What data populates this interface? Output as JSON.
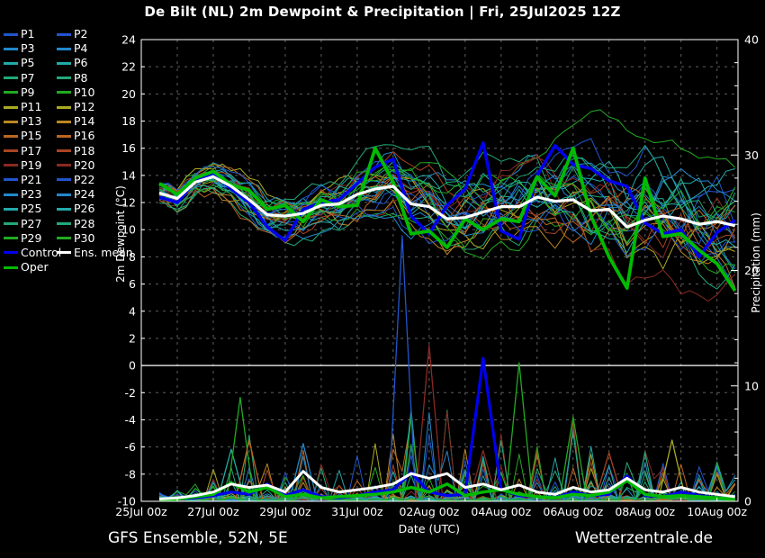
{
  "title": "De Bilt  (NL)  2m Dewpoint & Precipitation | Fri, 25Jul2025 12Z",
  "footer": {
    "left": "GFS Ensemble, 52N, 5E",
    "right": "Wetterzentrale.de"
  },
  "legend": {
    "special": [
      {
        "label": "Control",
        "color": "#0000ee"
      },
      {
        "label": "Ens. mean",
        "color": "#ffffff"
      },
      {
        "label": "Oper",
        "color": "#00bb00"
      }
    ]
  },
  "chart_data": {
    "type": "line",
    "title": "De Bilt  (NL)  2m Dewpoint & Precipitation | Fri, 25Jul2025 12Z",
    "x_axis": {
      "label": "Date (UTC)",
      "tick_hours": [
        0,
        48,
        96,
        144,
        192,
        240,
        288,
        336,
        384
      ],
      "tick_labels": [
        "25Jul 00z",
        "27Jul 00z",
        "29Jul 00z",
        "31Jul 00z",
        "02Aug 00z",
        "04Aug 00z",
        "06Aug 00z",
        "08Aug 00z",
        "10Aug 00z"
      ],
      "day_grid_step": 24,
      "hours_domain": [
        0,
        398
      ]
    },
    "y_left": {
      "label": "2m Dewpoint (°C)",
      "min": -10,
      "max": 24,
      "tick_step": 2,
      "zero_line": 0
    },
    "y_right": {
      "label": "Precipitation (mm)",
      "min": 0,
      "max": 40,
      "label_step": 10,
      "tick_step": 2
    },
    "hours": [
      12,
      24,
      36,
      48,
      60,
      72,
      84,
      96,
      108,
      120,
      132,
      144,
      156,
      168,
      180,
      192,
      204,
      216,
      228,
      240,
      252,
      264,
      276,
      288,
      300,
      312,
      324,
      336,
      348,
      360,
      372,
      384,
      396
    ],
    "series": {
      "control": {
        "label": "Control",
        "color": "#0000ee",
        "dewpoint": [
          12.4,
          12.0,
          13.6,
          14.2,
          13.0,
          12.0,
          10.2,
          9.2,
          11.5,
          12.0,
          12.2,
          13.4,
          14.6,
          15.2,
          11.0,
          9.7,
          11.8,
          13.0,
          16.4,
          9.9,
          9.3,
          14.0,
          16.2,
          14.8,
          14.5,
          13.6,
          13.2,
          10.5,
          9.7,
          10.0,
          8.0,
          9.8,
          10.7
        ],
        "precip": [
          0.1,
          0.2,
          0.3,
          0.5,
          0.8,
          0.6,
          1.5,
          0.5,
          1.0,
          0.4,
          0.3,
          0.5,
          0.8,
          1.0,
          2.5,
          0.8,
          0.5,
          0.6,
          12.4,
          1.0,
          0.5,
          0.4,
          0.3,
          0.8,
          0.5,
          0.6,
          2.2,
          0.5,
          0.4,
          0.8,
          0.5,
          0.3,
          0.2
        ]
      },
      "ens_mean": {
        "label": "Ens. mean",
        "color": "#ffffff",
        "dewpoint": [
          12.7,
          12.3,
          13.5,
          13.9,
          13.2,
          12.2,
          11.1,
          11.0,
          11.2,
          11.8,
          11.9,
          12.6,
          13.0,
          13.2,
          11.9,
          11.7,
          10.8,
          10.9,
          11.3,
          11.7,
          11.7,
          12.4,
          12.1,
          12.2,
          11.4,
          11.5,
          10.2,
          10.7,
          11.0,
          10.8,
          10.4,
          10.6,
          10.3
        ],
        "precip": [
          0.2,
          0.3,
          0.5,
          0.8,
          1.5,
          1.2,
          1.4,
          0.8,
          2.6,
          1.2,
          0.8,
          1.0,
          1.2,
          1.5,
          2.4,
          2.0,
          2.4,
          1.2,
          1.5,
          1.0,
          1.4,
          0.8,
          0.6,
          1.2,
          0.8,
          1.0,
          2.0,
          1.0,
          0.8,
          1.2,
          0.8,
          0.6,
          0.4
        ]
      },
      "oper": {
        "label": "Oper",
        "color": "#00bb00",
        "dewpoint": [
          13.4,
          12.6,
          13.8,
          14.3,
          13.3,
          12.9,
          11.5,
          11.8,
          10.6,
          12.2,
          11.7,
          11.8,
          16.0,
          13.5,
          9.7,
          9.9,
          8.7,
          10.8,
          10.0,
          10.8,
          10.6,
          13.9,
          12.5,
          16.0,
          11.0,
          8.0,
          5.7,
          13.8,
          9.5,
          9.7,
          8.5,
          7.5,
          5.5
        ],
        "precip": [
          0.1,
          0.2,
          0.4,
          0.6,
          1.6,
          0.8,
          1.2,
          0.4,
          0.6,
          0.3,
          0.4,
          0.5,
          0.6,
          0.8,
          1.2,
          0.8,
          1.5,
          0.5,
          0.8,
          1.0,
          0.6,
          0.4,
          0.3,
          0.6,
          0.5,
          0.8,
          1.8,
          0.6,
          0.4,
          0.5,
          0.4,
          0.3,
          0.2
        ]
      }
    },
    "members": {
      "labels": [
        "P1",
        "P2",
        "P3",
        "P4",
        "P5",
        "P6",
        "P7",
        "P8",
        "P9",
        "P10",
        "P11",
        "P12",
        "P13",
        "P14",
        "P15",
        "P16",
        "P17",
        "P18",
        "P19",
        "P20",
        "P21",
        "P22",
        "P23",
        "P24",
        "P25",
        "P26",
        "P27",
        "P28",
        "P29",
        "P30"
      ],
      "palette": [
        "#2255cc",
        "#2288cc",
        "#22aaaa",
        "#22aa77",
        "#22aa22",
        "#aaaa22",
        "#bb8822",
        "#bb6622",
        "#aa4422",
        "#8b2a22"
      ],
      "seed": 11,
      "dew_env_min": [
        11.6,
        11.2,
        12.2,
        12.6,
        11.6,
        10.6,
        9.6,
        8.4,
        9.0,
        9.6,
        9.6,
        10.0,
        10.2,
        10.0,
        9.2,
        8.6,
        8.0,
        8.0,
        7.6,
        7.2,
        6.6,
        7.0,
        7.4,
        7.2,
        6.6,
        6.2,
        5.6,
        6.0,
        5.6,
        5.2,
        5.0,
        4.8,
        4.8
      ],
      "dew_env_max": [
        13.6,
        13.2,
        14.8,
        15.8,
        15.4,
        14.6,
        13.4,
        13.0,
        13.6,
        14.0,
        14.4,
        15.6,
        16.6,
        16.4,
        16.6,
        16.8,
        16.2,
        15.2,
        16.0,
        15.4,
        15.0,
        15.6,
        17.0,
        18.0,
        19.0,
        18.6,
        17.6,
        17.0,
        16.6,
        16.0,
        15.6,
        15.4,
        15.0
      ],
      "precip_env_max": [
        0.5,
        0.6,
        1.2,
        2.5,
        7.0,
        5.5,
        4.0,
        2.5,
        5.0,
        4.0,
        3.0,
        4.0,
        5.0,
        6.0,
        8.0,
        9.0,
        8.0,
        5.0,
        6.0,
        6.0,
        7.0,
        5.0,
        4.0,
        7.5,
        5.0,
        4.0,
        3.5,
        4.5,
        3.0,
        5.5,
        3.0,
        3.5,
        2.5
      ],
      "accent_high": {
        "member": 8,
        "from": 21,
        "to": 27
      }
    },
    "notable_precip_spikes": [
      {
        "hour": 60,
        "mm": 4.5,
        "palette_index": 2
      },
      {
        "hour": 66,
        "mm": 9.0,
        "palette_index": 4
      },
      {
        "hour": 72,
        "mm": 5.3,
        "palette_index": 7
      },
      {
        "hour": 108,
        "mm": 5.0,
        "palette_index": 1
      },
      {
        "hour": 174,
        "mm": 23.0,
        "palette_index": 0
      },
      {
        "hour": 192,
        "mm": 13.5,
        "palette_index": 9
      },
      {
        "hour": 228,
        "mm": 4.4,
        "palette_index": 9
      },
      {
        "hour": 252,
        "mm": 12.0,
        "palette_index": 4
      },
      {
        "hour": 288,
        "mm": 7.3,
        "palette_index": 4
      },
      {
        "hour": 312,
        "mm": 4.2,
        "palette_index": 8
      },
      {
        "hour": 354,
        "mm": 5.3,
        "palette_index": 5
      }
    ]
  }
}
